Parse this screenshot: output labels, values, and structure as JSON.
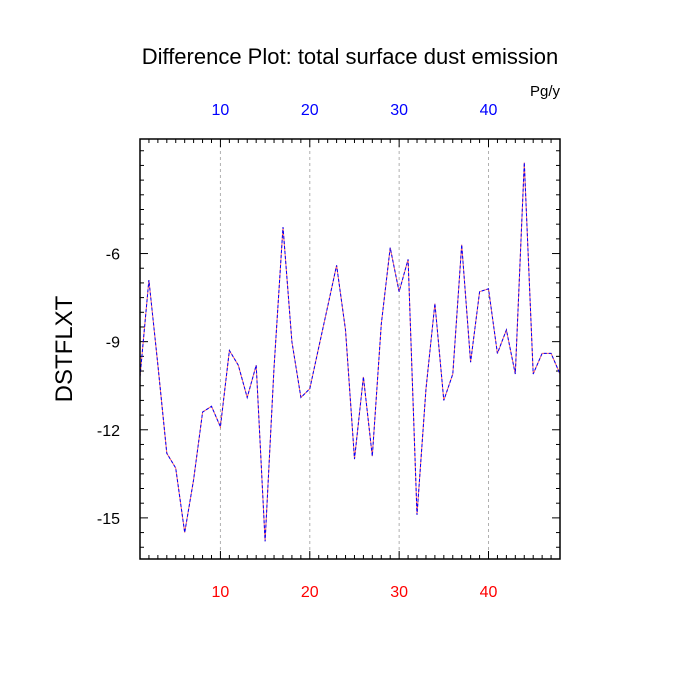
{
  "chart_data": {
    "type": "line",
    "title": "Difference Plot: total surface dust emission",
    "units": "Pg/y",
    "ylabel": "DSTFLXT",
    "xlabel": "",
    "xlim": [
      1,
      48
    ],
    "ylim": [
      -16.4,
      -2.1
    ],
    "xticks": [
      10,
      20,
      30,
      40
    ],
    "xtick_labels": [
      "10",
      "20",
      "30",
      "40"
    ],
    "yticks": [
      -15,
      -12,
      -9,
      -6
    ],
    "ytick_labels": [
      "-15",
      "-12",
      "-9",
      "-6"
    ],
    "top_axis_color": "#0000ff",
    "bottom_axis_color": "#ff0000",
    "grid": "vertical dashed",
    "series": [
      {
        "line_color": "#6a0dad",
        "line_style": "dashed",
        "x": [
          1,
          2,
          3,
          4,
          5,
          6,
          7,
          8,
          9,
          10,
          11,
          12,
          13,
          14,
          15,
          16,
          17,
          18,
          19,
          20,
          21,
          22,
          23,
          24,
          25,
          26,
          27,
          28,
          29,
          30,
          31,
          32,
          33,
          34,
          35,
          36,
          37,
          38,
          39,
          40,
          41,
          42,
          43,
          44,
          45,
          46,
          47,
          48
        ],
        "values": [
          -10.2,
          -6.9,
          -9.8,
          -12.8,
          -13.3,
          -15.5,
          -13.7,
          -11.4,
          -11.2,
          -11.9,
          -9.3,
          -9.8,
          -10.9,
          -9.8,
          -15.8,
          -9.9,
          -5.1,
          -9.0,
          -10.9,
          -10.6,
          -9.2,
          -7.8,
          -6.4,
          -8.6,
          -13.0,
          -10.2,
          -12.9,
          -8.4,
          -5.8,
          -7.3,
          -6.2,
          -14.9,
          -10.6,
          -7.7,
          -11.0,
          -10.1,
          -5.7,
          -9.7,
          -7.3,
          -7.2,
          -9.4,
          -8.6,
          -10.1,
          -2.9,
          -10.1,
          -9.4,
          -9.4,
          -10.1
        ]
      }
    ]
  }
}
